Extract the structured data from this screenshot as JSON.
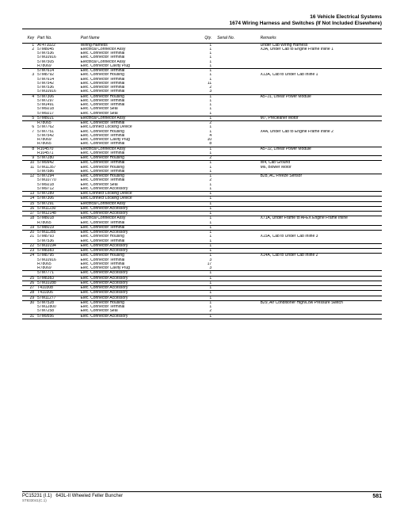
{
  "header": {
    "line1": "16  Vehicle Electrical Systems",
    "line2": "1674 Wiring Harness and Switches (If Not Included Elsewhere)"
  },
  "columns": [
    "Key",
    "Part No.",
    "Part Name",
    "Qty.",
    "Serial No.",
    "Remarks"
  ],
  "groups": [
    [
      {
        "key": "1",
        "part": "AT471022",
        "name": "Wiring Harness",
        "qty": "1",
        "rem": "Under Cab Wiring Harness"
      },
      {
        "key": "2",
        "part": "57M8045",
        "name": "Electrical Connector Assy",
        "qty": "1",
        "rem": "X3A, Under Cab to Engine Frame Inline 1"
      },
      {
        "key": "",
        "part": "57M7536",
        "name": "Elec. Connector Terminal",
        "qty": "1",
        "rem": ""
      },
      {
        "key": "",
        "part": "57M10916",
        "name": "Elec. Connector Terminal",
        "qty": "1",
        "rem": ""
      },
      {
        "key": "",
        "part": "57M7505",
        "name": "Electrical Connector Assy",
        "qty": "1",
        "rem": ""
      },
      {
        "key": "",
        "part": "R78069",
        "name": "Elec. Connector Cavity Plug",
        "qty": "1",
        "rem": ""
      }
    ],
    [
      {
        "key": "",
        "part": "57M7614",
        "name": "Elec. Connector Terminal",
        "qty": "1",
        "rem": ""
      },
      {
        "key": "3",
        "part": "57M8792",
        "name": "Elec. Connector Housing",
        "qty": "1",
        "rem": "X13A, Cab to Under Cab Inline 1"
      },
      {
        "key": "",
        "part": "57M7614",
        "name": "Elec. Connector Terminal",
        "qty": "1",
        "rem": ""
      },
      {
        "key": "",
        "part": "57M7542",
        "name": "Elec. Connector Terminal",
        "qty": "11",
        "rem": ""
      },
      {
        "key": "",
        "part": "57M7536",
        "name": "Elec. Connector Terminal",
        "qty": "2",
        "rem": ""
      },
      {
        "key": "",
        "part": "57M10916",
        "name": "Elec. Connector Terminal",
        "qty": "3",
        "rem": ""
      }
    ],
    [
      {
        "key": "4",
        "part": "57M7306",
        "name": "Elec. Connector Housing",
        "qty": "1",
        "rem": "A5–J1, Linear Power Module"
      },
      {
        "key": "",
        "part": "57M7297",
        "name": "Elec. Connector Terminal",
        "qty": "1",
        "rem": ""
      },
      {
        "key": "",
        "part": "57M1491",
        "name": "Elec. Connector Terminal",
        "qty": "1",
        "rem": ""
      },
      {
        "key": "",
        "part": "57M9218",
        "name": "Elec. Connector Seal",
        "qty": "1",
        "rem": ""
      },
      {
        "key": "",
        "part": "57M9217",
        "name": "Elec. Connector Seal",
        "qty": "1",
        "rem": ""
      }
    ],
    [
      {
        "key": "5",
        "part": "57M8021",
        "name": "Electrical Connector Assy",
        "qty": "1",
        "rem": "M7, Precleaner Motor"
      }
    ],
    [
      {
        "key": "",
        "part": "R78065",
        "name": "Elec. Connector Terminal",
        "qty": "2",
        "rem": ""
      },
      {
        "key": "6",
        "part": "57M7762",
        "name": "Elec.Connect Locking Device",
        "qty": "1",
        "rem": ""
      },
      {
        "key": "7",
        "part": "57M7751",
        "name": "Elec. Connector Housing",
        "qty": "1",
        "rem": "X4A, Under Cab to Engine Frame Inline 2"
      },
      {
        "key": "",
        "part": "57M7542",
        "name": "Elec. Connector Terminal",
        "qty": "4",
        "rem": ""
      },
      {
        "key": "",
        "part": "R78069",
        "name": "Elec. Connector Cavity Plug",
        "qty": "10",
        "rem": ""
      },
      {
        "key": "",
        "part": "R78065",
        "name": "Elec. Connector Terminal",
        "qty": "8",
        "rem": ""
      }
    ],
    [
      {
        "key": "8",
        "part": "R104570",
        "name": "Electrical Connector Assy",
        "qty": "1",
        "rem": "A5–J2, Linear Power Module"
      },
      {
        "key": "",
        "part": "R104571",
        "name": "Elec. Connector Terminal",
        "qty": "1",
        "rem": ""
      }
    ],
    [
      {
        "key": "9",
        "part": "57M7280",
        "name": "Elec. Connector Housing",
        "qty": "2",
        "rem": ""
      }
    ],
    [
      {
        "key": "10",
        "part": "57M9942",
        "name": "Elec. Connector Terminal",
        "qty": "1",
        "rem": "W4, Cab Ground"
      },
      {
        "key": "11",
        "part": "57M11357",
        "name": "Elec. Connector Housing",
        "qty": "1",
        "rem": "M6, Blower Motor"
      },
      {
        "key": "",
        "part": "57M7586",
        "name": "Elec. Connector Terminal",
        "qty": "1",
        "rem": ""
      }
    ],
    [
      {
        "key": "12",
        "part": "57M7294",
        "name": "Elec. Connector Housing",
        "qty": "1",
        "rem": "B28, AC Freeze Sensor"
      },
      {
        "key": "",
        "part": "57M10770",
        "name": "Elec. Connector Terminal",
        "qty": "2",
        "rem": ""
      },
      {
        "key": "",
        "part": "57M9218",
        "name": "Elec. Connector Seal",
        "qty": "1",
        "rem": ""
      },
      {
        "key": "",
        "part": "57M9712",
        "name": "Elec. Connector Accessory",
        "qty": "1",
        "rem": ""
      }
    ],
    [
      {
        "key": "13",
        "part": "57M7289",
        "name": "Elec.Connect Locking Device",
        "qty": "1",
        "rem": ""
      }
    ],
    [
      {
        "key": "14",
        "part": "57M7306",
        "name": "Elec.Connect Locking Device",
        "qty": "1",
        "rem": ""
      }
    ],
    [
      {
        "key": "15",
        "part": "57M7291",
        "name": "Electrical Connector Assy",
        "qty": "1",
        "rem": ""
      }
    ],
    [
      {
        "key": "16",
        "part": "57M11230",
        "name": "Elec. Connector Accessory",
        "qty": "1",
        "rem": ""
      }
    ],
    [
      {
        "key": "17",
        "part": "57M12148",
        "name": "Elec. Connector Accessory",
        "qty": "1",
        "rem": ""
      }
    ],
    [
      {
        "key": "18",
        "part": "57M8018",
        "name": "Electrical Connector Assy",
        "qty": "1",
        "rem": "X71A, Under Frame to AFEX Engine Frame Inline"
      },
      {
        "key": "",
        "part": "R78065",
        "name": "Elec. Connector Terminal",
        "qty": "1",
        "rem": ""
      }
    ],
    [
      {
        "key": "19",
        "part": "57M8019",
        "name": "Elec. Connector Terminal",
        "qty": "1",
        "rem": ""
      }
    ],
    [
      {
        "key": "20",
        "part": "57M11285",
        "name": "Elec. Connector Accessory",
        "qty": "1",
        "rem": ""
      },
      {
        "key": "21",
        "part": "57M8793",
        "name": "Elec. Connector Housing",
        "qty": "1",
        "rem": "X15A, Cab to Under Cab Inline 3"
      },
      {
        "key": "",
        "part": "57M7536",
        "name": "Elec. Connector Terminal",
        "qty": "1",
        "rem": ""
      }
    ],
    [
      {
        "key": "22",
        "part": "57M10194",
        "name": "Elec. Connector Accessory",
        "qty": "1",
        "rem": ""
      }
    ],
    [
      {
        "key": "23",
        "part": "57M8383",
        "name": "Elec. Connector Accessory",
        "qty": "1",
        "rem": ""
      }
    ],
    [
      {
        "key": "24",
        "part": "57M8795",
        "name": "Elec. Connector Housing",
        "qty": "1",
        "rem": "X14A, Cab to Under Cab Inline 2"
      },
      {
        "key": "",
        "part": "57M10916",
        "name": "Elec. Connector Terminal",
        "qty": "3",
        "rem": ""
      },
      {
        "key": "",
        "part": "R78065",
        "name": "Elec. Connector Terminal",
        "qty": "17",
        "rem": ""
      },
      {
        "key": "",
        "part": "R78069",
        "name": "Elec. Connector Cavity Plug",
        "qty": "3",
        "rem": ""
      }
    ],
    [
      {
        "key": "",
        "part": "57M7771",
        "name": "Elec. Connector Accessory",
        "qty": "1",
        "rem": ""
      }
    ],
    [
      {
        "key": "25",
        "part": "57M8383",
        "name": "Elec. Connector Accessory",
        "qty": "1",
        "rem": ""
      }
    ],
    [
      {
        "key": "26",
        "part": "57M10288",
        "name": "Elec. Connector Accessory",
        "qty": "1",
        "rem": ""
      }
    ],
    [
      {
        "key": "27",
        "part": "T410308",
        "name": "Elec. Connector Accessory",
        "qty": "1",
        "rem": ""
      }
    ],
    [
      {
        "key": "28",
        "part": "T410306",
        "name": "Elec. Connector Accessory",
        "qty": "1",
        "rem": ""
      }
    ],
    [
      {
        "key": "29",
        "part": "57M11277",
        "name": "Elec. Connector Accessory",
        "qty": "1",
        "rem": ""
      }
    ],
    [
      {
        "key": "30",
        "part": "57M7528",
        "name": "Elec. Connector Housing",
        "qty": "1",
        "rem": "B29, Air Conditioner High/Low Pressure Switch"
      },
      {
        "key": "",
        "part": "57M12800",
        "name": "Elec. Connector Terminal",
        "qty": "1",
        "rem": ""
      },
      {
        "key": "",
        "part": "57M7258",
        "name": "Elec. Connector Seal",
        "qty": "2",
        "rem": ""
      }
    ],
    [
      {
        "key": "31",
        "part": "57M9556",
        "name": "Elec. Connector Accessory",
        "qty": "1",
        "rem": ""
      }
    ]
  ],
  "footer": {
    "left1": "PC15231   (I.1)",
    "left2": "ST833041(C.1)",
    "mid": "643L-II Wheeled Feller Buncher",
    "page": "581"
  }
}
